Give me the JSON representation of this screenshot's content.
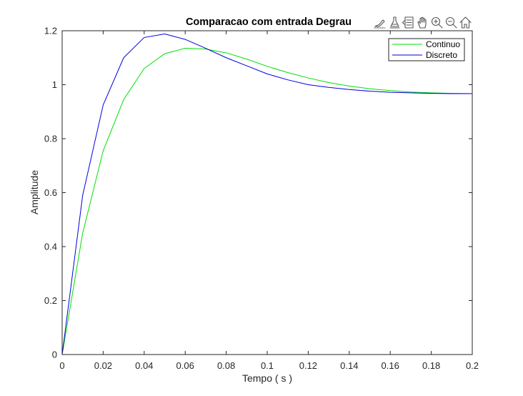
{
  "toolbar": {
    "icons": [
      "brush-icon",
      "data-tips-icon",
      "legend-toggle-icon",
      "pan-icon",
      "zoom-in-icon",
      "zoom-out-icon",
      "home-icon"
    ]
  },
  "chart_data": {
    "type": "line",
    "title": "Comparacao com entrada Degrau",
    "xlabel": "Tempo ( s )",
    "ylabel": "Amplitude",
    "xlim": [
      0,
      0.2
    ],
    "ylim": [
      0,
      1.2
    ],
    "xticks": [
      0,
      0.02,
      0.04,
      0.06,
      0.08,
      0.1,
      0.12,
      0.14,
      0.16,
      0.18,
      0.2
    ],
    "xtick_labels": [
      "0",
      "0.02",
      "0.04",
      "0.06",
      "0.08",
      "0.1",
      "0.12",
      "0.14",
      "0.16",
      "0.18",
      "0.2"
    ],
    "yticks": [
      0,
      0.2,
      0.4,
      0.6,
      0.8,
      1,
      1.2
    ],
    "ytick_labels": [
      "0",
      "0.2",
      "0.4",
      "0.6",
      "0.8",
      "1",
      "1.2"
    ],
    "grid": false,
    "legend_position": "top-right",
    "series": [
      {
        "name": "Continuo",
        "color": "#00e000",
        "x": [
          0,
          0.01,
          0.02,
          0.03,
          0.04,
          0.05,
          0.06,
          0.07,
          0.08,
          0.09,
          0.1,
          0.11,
          0.12,
          0.13,
          0.14,
          0.15,
          0.16,
          0.17,
          0.18,
          0.19,
          0.2
        ],
        "y": [
          0,
          0.45,
          0.755,
          0.945,
          1.06,
          1.115,
          1.135,
          1.132,
          1.118,
          1.095,
          1.068,
          1.045,
          1.025,
          1.008,
          0.995,
          0.985,
          0.978,
          0.973,
          0.97,
          0.968,
          0.967
        ]
      },
      {
        "name": "Discreto",
        "color": "#0000e0",
        "x": [
          0,
          0.01,
          0.02,
          0.03,
          0.04,
          0.05,
          0.06,
          0.07,
          0.08,
          0.09,
          0.1,
          0.11,
          0.12,
          0.13,
          0.14,
          0.15,
          0.16,
          0.17,
          0.18,
          0.19,
          0.2
        ],
        "y": [
          0,
          0.59,
          0.925,
          1.1,
          1.175,
          1.188,
          1.168,
          1.135,
          1.1,
          1.07,
          1.04,
          1.018,
          1.0,
          0.99,
          0.982,
          0.976,
          0.972,
          0.97,
          0.968,
          0.967,
          0.967
        ]
      }
    ]
  }
}
